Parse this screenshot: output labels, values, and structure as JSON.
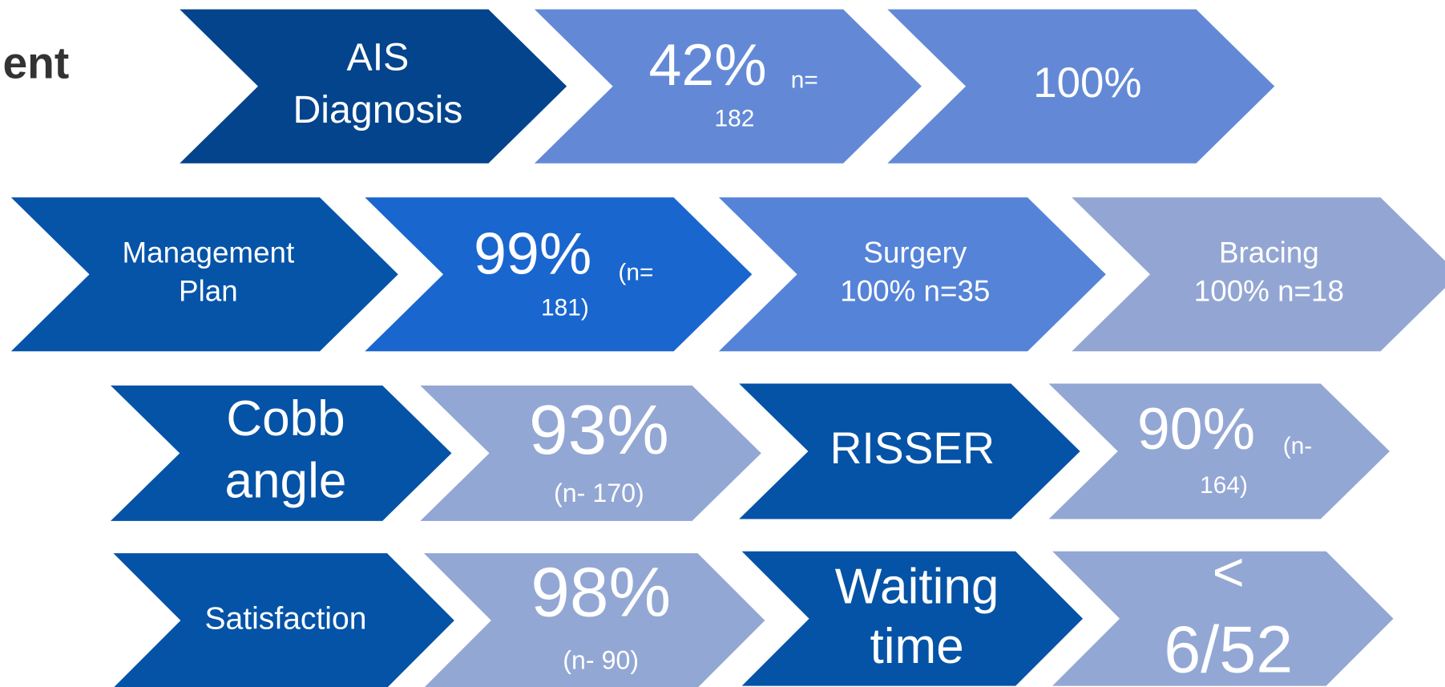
{
  "title": "ent",
  "chevrons": [
    {
      "texts": [
        "AIS",
        "Diagnosis"
      ]
    },
    {
      "texts": [
        "42%",
        "n=",
        "182"
      ]
    },
    {
      "texts": [
        "100%"
      ]
    },
    {
      "texts": [
        "Management",
        "Plan"
      ]
    },
    {
      "texts": [
        "99%",
        "(n=",
        "181)"
      ]
    },
    {
      "texts": [
        "Surgery",
        "100% n=35"
      ]
    },
    {
      "texts": [
        "Bracing",
        "100% n=18"
      ]
    },
    {
      "texts": [
        "Cobb",
        "angle"
      ]
    },
    {
      "texts": [
        "93%",
        "(n- 170)"
      ]
    },
    {
      "texts": [
        "RISSER"
      ]
    },
    {
      "texts": [
        "90%",
        "(n-",
        "164)"
      ]
    },
    {
      "texts": [
        "Satisfaction"
      ]
    },
    {
      "texts": [
        "98%",
        "(n- 90)"
      ]
    },
    {
      "texts": [
        "Waiting",
        "time"
      ]
    },
    {
      "texts": [
        "<",
        "6/52"
      ]
    }
  ]
}
